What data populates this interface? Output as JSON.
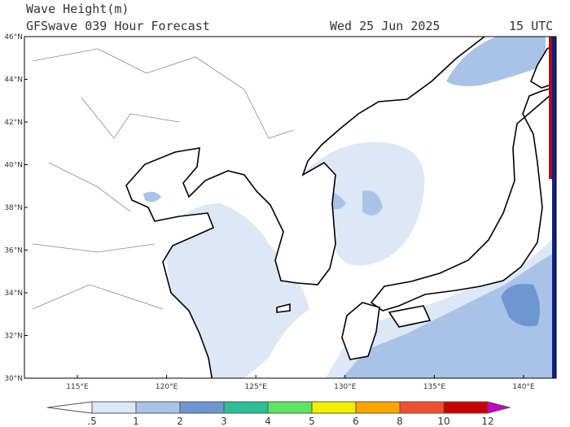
{
  "header": {
    "title": "Wave Height(m)",
    "subtitle": "GFSwave 039 Hour Forecast",
    "date": "Wed 25 Jun 2025",
    "time": "15 UTC"
  },
  "axes": {
    "lat_labels": [
      "30°N",
      "32°N",
      "34°N",
      "36°N",
      "38°N",
      "40°N",
      "42°N",
      "44°N",
      "46°N"
    ],
    "lon_labels": [
      "115°E",
      "120°E",
      "125°E",
      "130°E",
      "135°E",
      "140°E"
    ]
  },
  "colorbar": {
    "labels": [
      ".5",
      "1",
      "2",
      "3",
      "4",
      "5",
      "6",
      "8",
      "10",
      "12"
    ],
    "colors": [
      "#ffffff",
      "#dce8f5",
      "#a9c3e8",
      "#6e97d2",
      "#2dbe96",
      "#5ee65e",
      "#f0f000",
      "#ffa500",
      "#f05030",
      "#c80000",
      "#c800c8"
    ]
  }
}
